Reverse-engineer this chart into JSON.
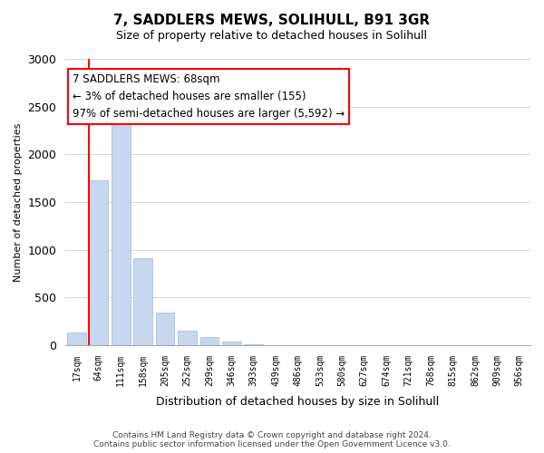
{
  "title": "7, SADDLERS MEWS, SOLIHULL, B91 3GR",
  "subtitle": "Size of property relative to detached houses in Solihull",
  "xlabel": "Distribution of detached houses by size in Solihull",
  "ylabel": "Number of detached properties",
  "bar_values": [
    130,
    1730,
    2370,
    910,
    345,
    155,
    80,
    35,
    10,
    2,
    1,
    0,
    0,
    0,
    0,
    0,
    0,
    0,
    0,
    0,
    0
  ],
  "bar_labels": [
    "17sqm",
    "64sqm",
    "111sqm",
    "158sqm",
    "205sqm",
    "252sqm",
    "299sqm",
    "346sqm",
    "393sqm",
    "439sqm",
    "486sqm",
    "533sqm",
    "580sqm",
    "627sqm",
    "674sqm",
    "721sqm",
    "768sqm",
    "815sqm",
    "862sqm",
    "909sqm",
    "956sqm"
  ],
  "bar_color": "#c5d8f0",
  "bar_edge_color": "#a0b8d8",
  "red_line_index": 1,
  "annotation_title": "7 SADDLERS MEWS: 68sqm",
  "annotation_line1": "← 3% of detached houses are smaller (155)",
  "annotation_line2": "97% of semi-detached houses are larger (5,592) →",
  "ylim": [
    0,
    3000
  ],
  "yticks": [
    0,
    500,
    1000,
    1500,
    2000,
    2500,
    3000
  ],
  "footer_line1": "Contains HM Land Registry data © Crown copyright and database right 2024.",
  "footer_line2": "Contains public sector information licensed under the Open Government Licence v3.0.",
  "background_color": "#ffffff",
  "grid_color": "#d0d8e8"
}
